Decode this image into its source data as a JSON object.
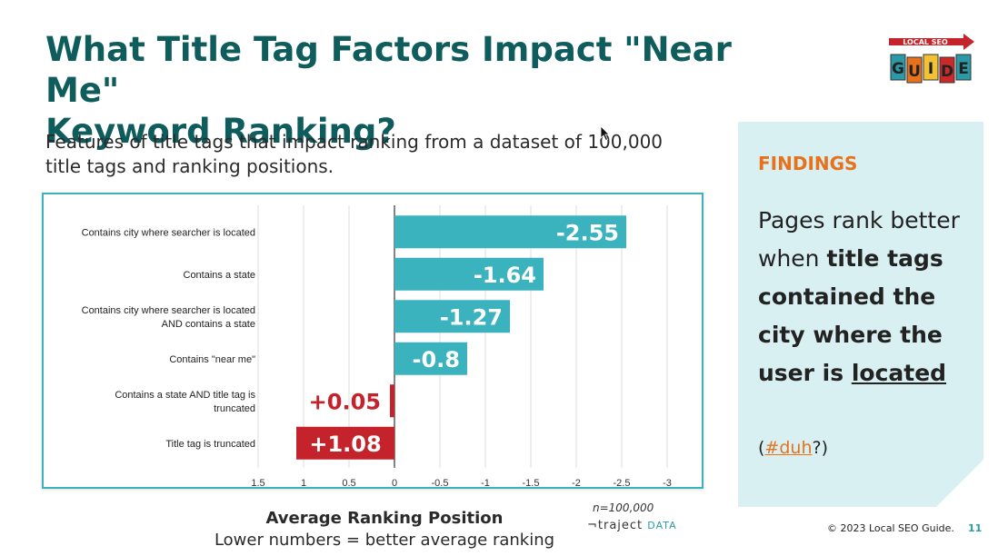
{
  "slide": {
    "title_line1": "What Title Tag Factors Impact \"Near Me\"",
    "title_line2": "Keyword Ranking?",
    "subtitle_line1": "Features of title tags that impact ranking from a dataset of 100,000",
    "subtitle_line2": "title tags and ranking positions.",
    "axis_title": "Average Ranking Position",
    "axis_subtitle": "Lower numbers = better average ranking",
    "sample_size": "n=100,000",
    "brand_prefix": "¬traject",
    "brand_suffix": "DATA",
    "footer": "© 2023 Local SEO Guide.",
    "page_number": "11"
  },
  "logo": {
    "top_text": "LOCAL SEO",
    "bottom_letters": [
      "G",
      "U",
      "I",
      "D",
      "E"
    ],
    "colors": [
      "#2a9aa6",
      "#e8711c",
      "#f2c233",
      "#cc2a2a",
      "#2a9aa6"
    ]
  },
  "findings": {
    "heading": "FINDINGS",
    "text_plain_1": "Pages rank better when ",
    "text_bold": "title tags contained the city where the user is ",
    "text_underlined": "located",
    "tag_open": "(",
    "tag": "#duh",
    "tag_close": "?)"
  },
  "chart_data": {
    "type": "bar",
    "orientation": "horizontal",
    "categories": [
      [
        "Contains city where searcher is located"
      ],
      [
        "Contains a state"
      ],
      [
        "Contains city where searcher is located",
        "AND contains a state"
      ],
      [
        "Contains \"near me\""
      ],
      [
        "Contains a state AND title tag is",
        "truncated"
      ],
      [
        "Title tag is truncated"
      ]
    ],
    "values": [
      -2.55,
      -1.64,
      -1.27,
      -0.8,
      0.05,
      1.08
    ],
    "value_labels": [
      "-2.55",
      "-1.64",
      "-1.27",
      "-0.8",
      "+0.05",
      "+1.08"
    ],
    "xlim": [
      1.5,
      -3
    ],
    "x_reversed": true,
    "ticks": [
      1.5,
      1,
      0.5,
      0,
      -0.5,
      -1,
      -1.5,
      -2,
      -2.5,
      -3
    ],
    "tick_labels": [
      "1.5",
      "1",
      "0.5",
      "0",
      "-0.5",
      "-1",
      "-1.5",
      "-2",
      "-2.5",
      "-3"
    ],
    "grid": true,
    "colors": {
      "negative": "#3ab3bf",
      "positive": "#c4232b"
    }
  }
}
